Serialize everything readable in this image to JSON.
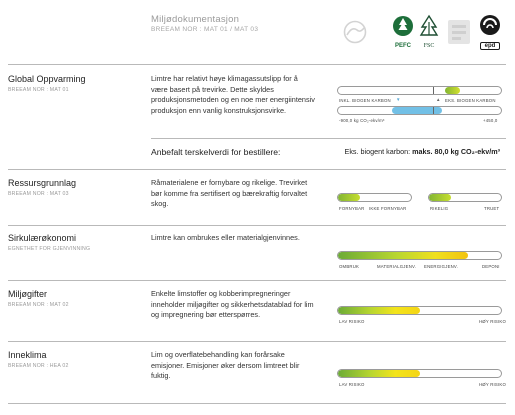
{
  "header": {
    "title": "Miljødokumentasjon",
    "subtitle": "BREEAM NOR : MAT 01 / MAT 03",
    "logos": {
      "pefc": "PEFC",
      "fsc": "FSC",
      "epd": "epd"
    }
  },
  "sections": {
    "climate": {
      "title": "Global Oppvarming",
      "code": "BREEAM NOR : MAT 01",
      "desc": "Limtre har relativt høye klimagassutslipp for å være basert på trevirke. Dette skyldes produksjonsmetoden og en noe mer energiintensiv produksjon enn vanlig konstruksjonsvirke.",
      "bar_top_left_label": "INKL. BIOGEN KARBON",
      "bar_top_right_label": "EKS. BIOGEN KARBON",
      "scale_min_label": "-900,0 kg CO₂-ekv/m³",
      "scale_max_label": "+450,0",
      "threshold_label": "Anbefalt terskelverdi for bestillere:",
      "threshold_prefix": "Eks. biogent karbon:",
      "threshold_max": "maks.",
      "threshold_value": "80,0",
      "threshold_unit": "kg CO₂-ekv/m³"
    },
    "resources": {
      "title": "Ressursgrunnlag",
      "code": "BREEAM NOR : MAT 03",
      "desc": "Råmaterialene er fornybare og rikelige. Trevirket bør komme fra sertifisert og bærekraftig forvaltet skog.",
      "bar1_left_label": "FORNYBAR",
      "bar1_right_label": "IKKE FORNYBAR",
      "bar2_left_label": "RIKELIG",
      "bar2_right_label": "TRUET",
      "bar1_level": 0.3,
      "bar2_level": 0.3
    },
    "circular": {
      "title": "Sirkulærøkonomi",
      "code": "EGNETHET FOR GJENVINNING",
      "desc": "Limtre kan ombrukes eller materialgjenvinnes.",
      "labels": [
        "OMBRUK",
        "MATERIALGJENV.",
        "ENERGIGJENV.",
        "DEPONI"
      ],
      "level": 0.8
    },
    "pollutants": {
      "title": "Miljøgifter",
      "code": "BREEAM NOR : MAT 02",
      "desc": "Enkelte limstoffer og kobberimpregneringer inneholder miljøgifter og sikkerhetsdatablad for lim og impregnering bør etterspørres.",
      "left_label": "LAV RISIKO",
      "right_label": "HØY RISIKO",
      "level": 0.5
    },
    "indoor": {
      "title": "Inneklima",
      "code": "BREEAM NOR : HEA 02",
      "desc": "Lim og overflatebehandling kan forårsake emisjoner. Emisjoner øker dersom limtreet blir fuktig.",
      "left_label": "LAV RISIKO",
      "right_label": "HØY RISIKO",
      "level": 0.5
    }
  },
  "colors": {
    "green": "#82b532",
    "blue": "#5aaad6",
    "yellow": "#f3e41b",
    "divider": "#b9b9b9"
  }
}
